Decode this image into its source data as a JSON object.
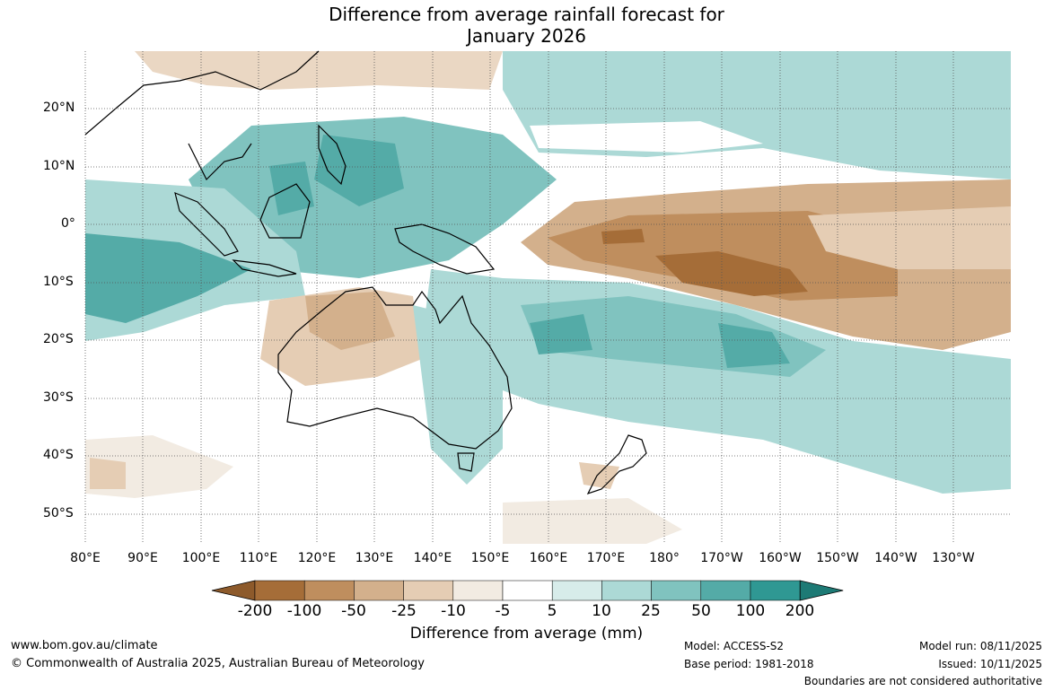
{
  "title_line1": "Difference from average rainfall forecast for",
  "title_line2": "January 2026",
  "lat_labels": [
    "20°N",
    "10°N",
    "0°",
    "10°S",
    "20°S",
    "30°S",
    "40°S",
    "50°S"
  ],
  "lon_labels": [
    "80°E",
    "90°E",
    "100°E",
    "110°E",
    "120°E",
    "130°E",
    "140°E",
    "150°E",
    "160°E",
    "170°E",
    "180°",
    "170°W",
    "160°W",
    "150°W",
    "140°W",
    "130°W"
  ],
  "colorbar": {
    "ticks": [
      "-200",
      "-100",
      "-50",
      "-25",
      "-10",
      "-5",
      "5",
      "10",
      "25",
      "50",
      "100",
      "200"
    ],
    "colors": [
      "#a56d38",
      "#bf8e5e",
      "#d3b08c",
      "#e5cdb4",
      "#f2ebe2",
      "#ffffff",
      "#d7ecea",
      "#acd9d6",
      "#80c3bf",
      "#54aba7",
      "#2f9893",
      "#1d7a75"
    ],
    "label": "Difference from average (mm)"
  },
  "footer": {
    "url": "www.bom.gov.au/climate",
    "copyright": "© Commonwealth of Australia 2025, Australian Bureau of Meteorology",
    "model": "Model: ACCESS-S2",
    "base_period": "Base period: 1981-2018",
    "model_run": "Model run: 08/11/2025",
    "issued": "Issued: 10/11/2025",
    "disclaimer": "Boundaries are not considered authoritative"
  }
}
